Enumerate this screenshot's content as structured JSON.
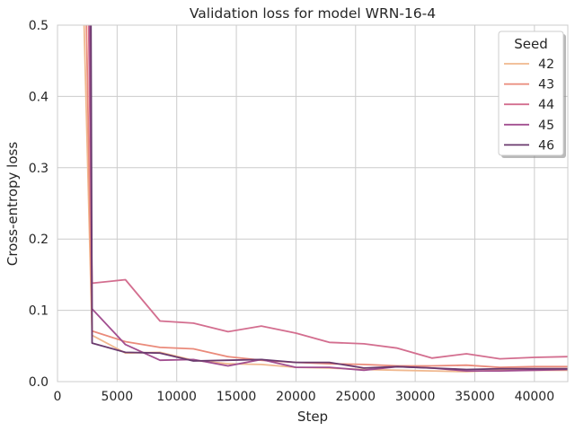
{
  "chart_data": {
    "type": "line",
    "title": "Validation loss for model WRN-16-4",
    "xlabel": "Step",
    "ylabel": "Cross-entropy loss",
    "xlim": [
      0,
      42800
    ],
    "ylim": [
      0,
      0.5
    ],
    "xticks": [
      0,
      5000,
      10000,
      15000,
      20000,
      25000,
      30000,
      35000,
      40000
    ],
    "yticks": [
      0.0,
      0.1,
      0.2,
      0.3,
      0.4,
      0.5
    ],
    "xtick_labels": [
      "0",
      "5000",
      "10000",
      "15000",
      "20000",
      "25000",
      "30000",
      "35000",
      "40000"
    ],
    "ytick_labels": [
      "0.0",
      "0.1",
      "0.2",
      "0.3",
      "0.4",
      "0.5"
    ],
    "grid": true,
    "legend": {
      "title": "Seed",
      "position": "top-right"
    },
    "series": [
      {
        "name": "42",
        "color": "#f0b88e",
        "x": [
          2200,
          2900,
          5700,
          8600,
          11400,
          14300,
          17100,
          20000,
          22800,
          25700,
          28500,
          31400,
          34300,
          37100,
          40000,
          42800
        ],
        "y": [
          0.52,
          0.065,
          0.04,
          0.041,
          0.03,
          0.025,
          0.024,
          0.02,
          0.019,
          0.017,
          0.016,
          0.015,
          0.014,
          0.016,
          0.016,
          0.016
        ]
      },
      {
        "name": "43",
        "color": "#ea8a7a",
        "x": [
          2400,
          2900,
          5700,
          8600,
          11400,
          14300,
          17100,
          20000,
          22800,
          25700,
          28500,
          31400,
          34300,
          37100,
          40000,
          42800
        ],
        "y": [
          0.52,
          0.071,
          0.056,
          0.048,
          0.046,
          0.035,
          0.03,
          0.027,
          0.025,
          0.024,
          0.022,
          0.022,
          0.023,
          0.02,
          0.021,
          0.021
        ]
      },
      {
        "name": "44",
        "color": "#d36e8f",
        "x": [
          2600,
          2900,
          5700,
          8600,
          11400,
          14300,
          17100,
          20000,
          22800,
          25700,
          28500,
          31400,
          34300,
          37100,
          40000,
          42800
        ],
        "y": [
          0.52,
          0.138,
          0.143,
          0.085,
          0.082,
          0.07,
          0.078,
          0.068,
          0.055,
          0.053,
          0.047,
          0.033,
          0.039,
          0.032,
          0.034,
          0.035
        ]
      },
      {
        "name": "45",
        "color": "#a24f90",
        "x": [
          2700,
          2900,
          5700,
          8600,
          11400,
          14300,
          17100,
          20000,
          22800,
          25700,
          28500,
          31400,
          34300,
          37100,
          40000,
          42800
        ],
        "y": [
          0.52,
          0.102,
          0.052,
          0.03,
          0.031,
          0.022,
          0.031,
          0.02,
          0.02,
          0.016,
          0.021,
          0.019,
          0.015,
          0.015,
          0.016,
          0.017
        ]
      },
      {
        "name": "46",
        "color": "#6a3a6e",
        "x": [
          2800,
          2900,
          5700,
          8600,
          11400,
          14300,
          17100,
          20000,
          22800,
          25700,
          28500,
          31400,
          34300,
          37100,
          40000,
          42800
        ],
        "y": [
          0.52,
          0.054,
          0.041,
          0.04,
          0.029,
          0.03,
          0.031,
          0.027,
          0.027,
          0.019,
          0.021,
          0.019,
          0.017,
          0.018,
          0.018,
          0.018
        ]
      }
    ]
  }
}
